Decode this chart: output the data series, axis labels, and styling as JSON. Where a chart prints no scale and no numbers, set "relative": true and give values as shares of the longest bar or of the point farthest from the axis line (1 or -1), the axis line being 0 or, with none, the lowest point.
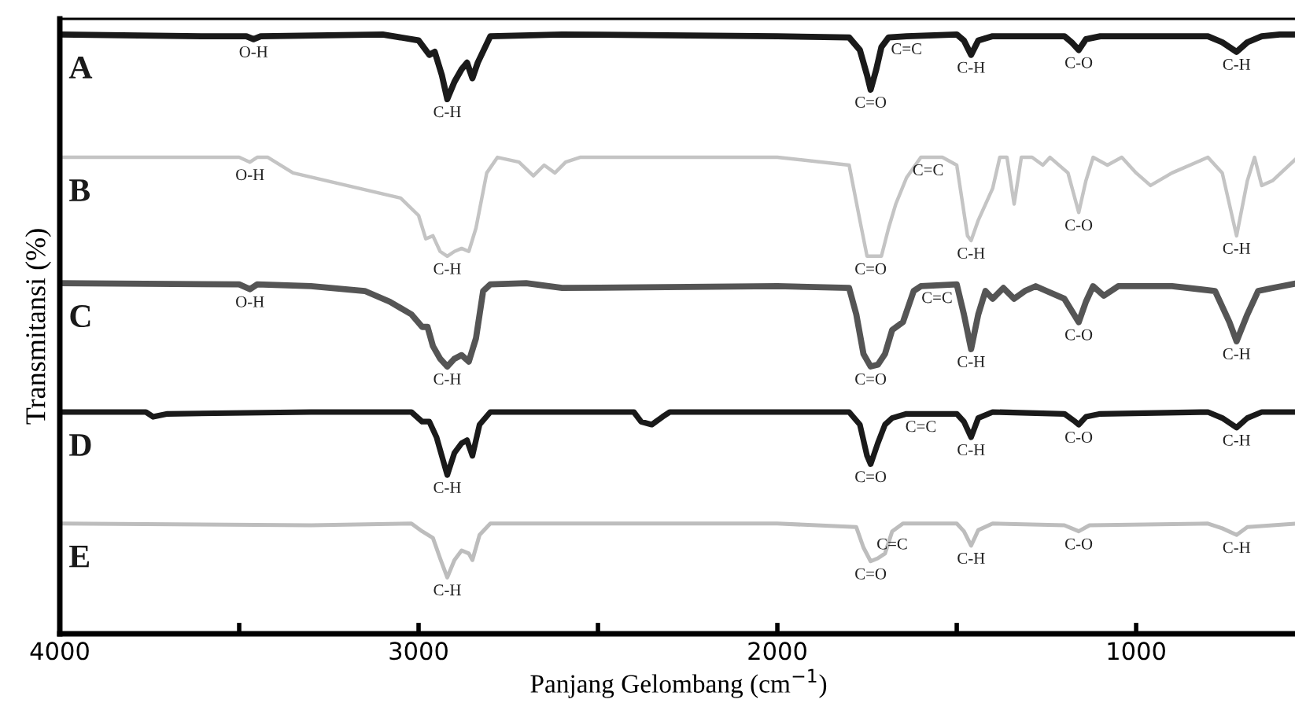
{
  "chart_data": {
    "type": "line",
    "relative": true,
    "xlabel": "Panjang Gelombang (cm$^{−1}$)",
    "ylabel": "Transmitansi (%)",
    "xlim": [
      4000,
      550
    ],
    "xticks": [
      4000,
      {
        "value": 3500,
        "label": null
      },
      3000,
      {
        "value": 2500,
        "label": null
      },
      2000,
      {
        "value": 1500,
        "label": null
      },
      1000
    ],
    "grid": false,
    "legend": false,
    "marker": "none",
    "line_style": "solid",
    "series": [
      {
        "name": "A",
        "color": "#1a1a1a",
        "x": [
          4000,
          3600,
          3480,
          3460,
          3440,
          3100,
          3000,
          2970,
          2955,
          2935,
          2920,
          2900,
          2880,
          2865,
          2850,
          2835,
          2800,
          2600,
          2000,
          1800,
          1770,
          1750,
          1740,
          1725,
          1710,
          1690,
          1640,
          1500,
          1480,
          1460,
          1440,
          1400,
          1200,
          1180,
          1160,
          1140,
          1100,
          800,
          760,
          720,
          690,
          650,
          600,
          550
        ],
        "values": [
          1.0,
          0.997,
          0.997,
          0.992,
          0.997,
          1.0,
          0.99,
          0.966,
          0.971,
          0.932,
          0.892,
          0.921,
          0.942,
          0.953,
          0.927,
          0.953,
          0.997,
          1.0,
          0.997,
          0.995,
          0.974,
          0.932,
          0.908,
          0.94,
          0.979,
          0.995,
          0.997,
          1.0,
          0.99,
          0.966,
          0.99,
          0.997,
          0.997,
          0.987,
          0.974,
          0.992,
          0.997,
          0.997,
          0.987,
          0.971,
          0.987,
          0.997,
          1.0,
          1.0
        ]
      },
      {
        "name": "B",
        "color": "#c4c4c4",
        "x": [
          4000,
          3500,
          3470,
          3450,
          3420,
          3350,
          3200,
          3050,
          3000,
          2980,
          2960,
          2940,
          2920,
          2900,
          2880,
          2860,
          2840,
          2810,
          2780,
          2720,
          2680,
          2650,
          2620,
          2590,
          2550,
          2000,
          1800,
          1770,
          1750,
          1710,
          1690,
          1670,
          1640,
          1600,
          1540,
          1500,
          1470,
          1460,
          1440,
          1400,
          1380,
          1360,
          1340,
          1320,
          1290,
          1260,
          1240,
          1190,
          1160,
          1140,
          1120,
          1080,
          1040,
          1000,
          960,
          900,
          800,
          760,
          720,
          690,
          670,
          650,
          620,
          550
        ],
        "values": [
          0.795,
          0.795,
          0.787,
          0.795,
          0.795,
          0.769,
          0.748,
          0.727,
          0.698,
          0.659,
          0.664,
          0.638,
          0.63,
          0.638,
          0.643,
          0.638,
          0.677,
          0.769,
          0.795,
          0.787,
          0.764,
          0.782,
          0.769,
          0.787,
          0.795,
          0.795,
          0.782,
          0.69,
          0.63,
          0.63,
          0.677,
          0.717,
          0.761,
          0.795,
          0.795,
          0.782,
          0.664,
          0.656,
          0.69,
          0.743,
          0.795,
          0.795,
          0.717,
          0.795,
          0.795,
          0.782,
          0.795,
          0.769,
          0.703,
          0.756,
          0.795,
          0.782,
          0.795,
          0.769,
          0.748,
          0.769,
          0.795,
          0.769,
          0.664,
          0.756,
          0.795,
          0.748,
          0.756,
          0.795
        ]
      },
      {
        "name": "C",
        "color": "#555555",
        "x": [
          4000,
          3500,
          3470,
          3450,
          3300,
          3150,
          3080,
          3020,
          2990,
          2975,
          2960,
          2940,
          2920,
          2900,
          2880,
          2860,
          2840,
          2820,
          2800,
          2700,
          2600,
          2000,
          1800,
          1780,
          1760,
          1740,
          1720,
          1700,
          1680,
          1650,
          1620,
          1600,
          1500,
          1480,
          1460,
          1440,
          1420,
          1400,
          1370,
          1340,
          1310,
          1280,
          1250,
          1200,
          1160,
          1140,
          1120,
          1090,
          1050,
          900,
          780,
          740,
          720,
          690,
          660,
          620,
          550
        ],
        "values": [
          0.585,
          0.583,
          0.575,
          0.583,
          0.58,
          0.572,
          0.554,
          0.533,
          0.512,
          0.512,
          0.48,
          0.459,
          0.446,
          0.459,
          0.465,
          0.454,
          0.493,
          0.572,
          0.583,
          0.585,
          0.577,
          0.58,
          0.577,
          0.533,
          0.467,
          0.446,
          0.449,
          0.467,
          0.507,
          0.52,
          0.572,
          0.58,
          0.583,
          0.533,
          0.475,
          0.533,
          0.572,
          0.559,
          0.577,
          0.559,
          0.572,
          0.58,
          0.572,
          0.559,
          0.52,
          0.554,
          0.58,
          0.564,
          0.58,
          0.58,
          0.572,
          0.52,
          0.488,
          0.533,
          0.572,
          0.577,
          0.585
        ]
      },
      {
        "name": "D",
        "color": "#1a1a1a",
        "x": [
          4000,
          3760,
          3740,
          3700,
          3300,
          3020,
          2990,
          2970,
          2950,
          2920,
          2900,
          2880,
          2865,
          2850,
          2830,
          2800,
          2400,
          2380,
          2350,
          2320,
          2300,
          1800,
          1770,
          1750,
          1740,
          1720,
          1700,
          1680,
          1640,
          1500,
          1480,
          1460,
          1440,
          1400,
          1200,
          1170,
          1160,
          1140,
          1100,
          800,
          760,
          720,
          690,
          650,
          550
        ],
        "values": [
          0.37,
          0.37,
          0.362,
          0.367,
          0.37,
          0.37,
          0.354,
          0.354,
          0.328,
          0.265,
          0.302,
          0.318,
          0.323,
          0.297,
          0.349,
          0.37,
          0.37,
          0.354,
          0.349,
          0.362,
          0.37,
          0.37,
          0.349,
          0.297,
          0.283,
          0.318,
          0.349,
          0.36,
          0.367,
          0.367,
          0.354,
          0.328,
          0.36,
          0.37,
          0.367,
          0.354,
          0.349,
          0.362,
          0.367,
          0.37,
          0.36,
          0.344,
          0.36,
          0.37,
          0.37
        ]
      },
      {
        "name": "E",
        "color": "#bdbdbd",
        "x": [
          4000,
          3300,
          3020,
          2990,
          2960,
          2940,
          2920,
          2900,
          2880,
          2860,
          2850,
          2830,
          2800,
          2000,
          1780,
          1760,
          1740,
          1720,
          1700,
          1680,
          1650,
          1500,
          1480,
          1460,
          1440,
          1400,
          1200,
          1160,
          1130,
          800,
          760,
          720,
          690,
          550
        ],
        "values": [
          0.184,
          0.181,
          0.184,
          0.171,
          0.16,
          0.126,
          0.094,
          0.123,
          0.139,
          0.134,
          0.123,
          0.165,
          0.184,
          0.184,
          0.178,
          0.144,
          0.121,
          0.126,
          0.134,
          0.171,
          0.184,
          0.184,
          0.171,
          0.147,
          0.173,
          0.184,
          0.181,
          0.171,
          0.181,
          0.184,
          0.176,
          0.165,
          0.178,
          0.184
        ]
      }
    ],
    "annotations": [
      {
        "text": "O-H",
        "x": 3460,
        "y": 0.992
      },
      {
        "text": "C-H",
        "x": 2920,
        "y": 0.892
      },
      {
        "text": "C=O",
        "x": 1740,
        "y": 0.908
      },
      {
        "text": "C=C",
        "x": 1640,
        "y": 0.997
      },
      {
        "text": "C-H",
        "x": 1460,
        "y": 0.966
      },
      {
        "text": "C-O",
        "x": 1160,
        "y": 0.974
      },
      {
        "text": "C-H",
        "x": 720,
        "y": 0.971
      },
      {
        "text": "O-H",
        "x": 3470,
        "y": 0.787
      },
      {
        "text": "C-H",
        "x": 2920,
        "y": 0.63
      },
      {
        "text": "C=O",
        "x": 1740,
        "y": 0.63
      },
      {
        "text": "C=C",
        "x": 1580,
        "y": 0.795
      },
      {
        "text": "C-H",
        "x": 1460,
        "y": 0.656
      },
      {
        "text": "C-O",
        "x": 1160,
        "y": 0.703
      },
      {
        "text": "C-H",
        "x": 720,
        "y": 0.664
      },
      {
        "text": "O-H",
        "x": 3470,
        "y": 0.575
      },
      {
        "text": "C-H",
        "x": 2920,
        "y": 0.446
      },
      {
        "text": "C=O",
        "x": 1740,
        "y": 0.446
      },
      {
        "text": "C=C",
        "x": 1555,
        "y": 0.582
      },
      {
        "text": "C-H",
        "x": 1460,
        "y": 0.475
      },
      {
        "text": "C-O",
        "x": 1160,
        "y": 0.52
      },
      {
        "text": "C-H",
        "x": 720,
        "y": 0.488
      },
      {
        "text": "C-H",
        "x": 2920,
        "y": 0.265
      },
      {
        "text": "C=O",
        "x": 1740,
        "y": 0.283
      },
      {
        "text": "C=C",
        "x": 1600,
        "y": 0.367
      },
      {
        "text": "C-H",
        "x": 1460,
        "y": 0.328
      },
      {
        "text": "C-O",
        "x": 1160,
        "y": 0.349
      },
      {
        "text": "C-H",
        "x": 720,
        "y": 0.344
      },
      {
        "text": "C-H",
        "x": 2920,
        "y": 0.094
      },
      {
        "text": "C=O",
        "x": 1740,
        "y": 0.121
      },
      {
        "text": "C=C",
        "x": 1680,
        "y": 0.171
      },
      {
        "text": "C-H",
        "x": 1460,
        "y": 0.147
      },
      {
        "text": "C-O",
        "x": 1160,
        "y": 0.171
      },
      {
        "text": "C-H",
        "x": 720,
        "y": 0.165
      }
    ]
  }
}
